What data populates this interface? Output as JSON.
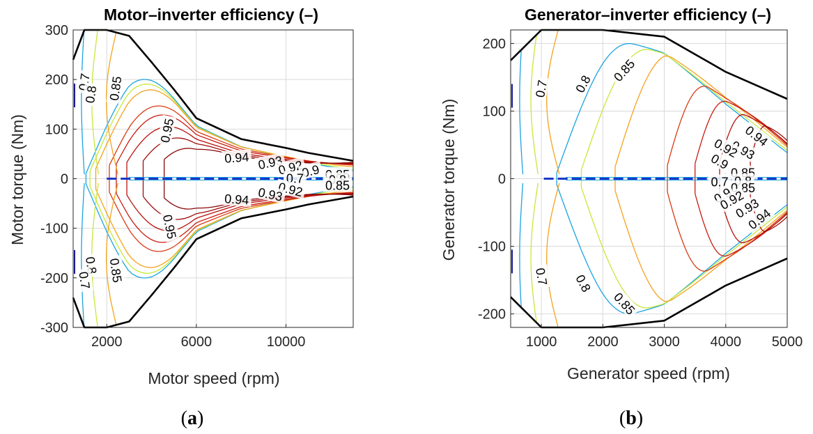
{
  "figure": {
    "caption_a_open": "(",
    "caption_a_letter": "a",
    "caption_a_close": ")",
    "caption_b_open": "(",
    "caption_b_letter": "b",
    "caption_b_close": ")"
  },
  "colors": {
    "boundary": "#000000",
    "grid": "#d9d9d9",
    "c070": "#1ba3e0",
    "c080": "#c6e83a",
    "c085": "#f4a21c",
    "c090": "#d83a12",
    "c092": "#c81a0e",
    "c093": "#b8100c",
    "c094": "#a00a0a",
    "c095": "#8a0606",
    "core": "#1838c8",
    "low": "#1a1a90"
  },
  "chart_data": [
    {
      "type": "contour",
      "title": "Motor–inverter efficiency (–)",
      "xlabel": "Motor speed (rpm)",
      "ylabel": "Motor torque (Nm)",
      "xlim": [
        500,
        13000
      ],
      "ylim": [
        -300,
        300
      ],
      "xticks": [
        2000,
        6000,
        10000
      ],
      "xtick_labels": [
        "2000",
        "6000",
        "10000"
      ],
      "yticks": [
        300,
        200,
        100,
        0,
        -100,
        -200,
        -300
      ],
      "ytick_labels": [
        "300",
        "200",
        "100",
        "0",
        "-100",
        "-200",
        "-300"
      ],
      "grid": true,
      "levels": [
        0.7,
        0.8,
        0.85,
        0.9,
        0.92,
        0.93,
        0.94,
        0.95
      ],
      "boundary_upper": [
        [
          500,
          240
        ],
        [
          1000,
          300
        ],
        [
          2000,
          300
        ],
        [
          3000,
          288
        ],
        [
          4000,
          235
        ],
        [
          5000,
          180
        ],
        [
          6000,
          122
        ],
        [
          8000,
          80
        ],
        [
          10000,
          62
        ],
        [
          11000,
          52
        ],
        [
          13000,
          36
        ]
      ],
      "contour_labels": [
        {
          "text": "0.7",
          "x": 1000,
          "y": 195,
          "angle": -82
        },
        {
          "text": "0.8",
          "x": 1300,
          "y": 170,
          "angle": -82
        },
        {
          "text": "0.85",
          "x": 2400,
          "y": 182,
          "angle": -82
        },
        {
          "text": "0.95",
          "x": 4700,
          "y": 97,
          "angle": -78
        },
        {
          "text": "0.94",
          "x": 7800,
          "y": 42,
          "angle": -4
        },
        {
          "text": "0.93",
          "x": 9300,
          "y": 32,
          "angle": -12
        },
        {
          "text": "0.92",
          "x": 10200,
          "y": 22,
          "angle": -14
        },
        {
          "text": "0.9",
          "x": 11100,
          "y": 15,
          "angle": -14
        },
        {
          "text": "0.7",
          "x": 10400,
          "y": 0,
          "angle": 0
        },
        {
          "text": "0.85",
          "x": 12300,
          "y": 8,
          "angle": 0
        },
        {
          "text": "0.8",
          "x": 12300,
          "y": -3,
          "angle": 0
        },
        {
          "text": "0.85",
          "x": 12300,
          "y": -14,
          "angle": 0
        },
        {
          "text": "0.92",
          "x": 10200,
          "y": -22,
          "angle": 14
        },
        {
          "text": "0.93",
          "x": 9300,
          "y": -32,
          "angle": 12
        },
        {
          "text": "0.94",
          "x": 7800,
          "y": -42,
          "angle": 4
        },
        {
          "text": "0.95",
          "x": 4800,
          "y": -97,
          "angle": 78
        },
        {
          "text": "0.8",
          "x": 1300,
          "y": -175,
          "angle": 82
        },
        {
          "text": "0.7",
          "x": 1000,
          "y": -205,
          "angle": 82
        },
        {
          "text": "0.85",
          "x": 2400,
          "y": -185,
          "angle": 82
        }
      ]
    },
    {
      "type": "contour",
      "title": "Generator–inverter efficiency (–)",
      "xlabel": "Generator speed (rpm)",
      "ylabel": "Generator torque (Nm)",
      "xlim": [
        500,
        5000
      ],
      "ylim": [
        -220,
        220
      ],
      "xticks": [
        1000,
        2000,
        3000,
        4000,
        5000
      ],
      "xtick_labels": [
        "1000",
        "2000",
        "3000",
        "4000",
        "5000"
      ],
      "yticks": [
        200,
        100,
        0,
        -100,
        -200
      ],
      "ytick_labels": [
        "200",
        "100",
        "0",
        "-100",
        "-200"
      ],
      "grid": true,
      "levels": [
        0.7,
        0.8,
        0.85,
        0.9,
        0.92,
        0.93,
        0.94
      ],
      "boundary_upper": [
        [
          500,
          175
        ],
        [
          1000,
          220
        ],
        [
          2000,
          220
        ],
        [
          3000,
          210
        ],
        [
          4000,
          158
        ],
        [
          5000,
          118
        ]
      ],
      "contour_labels": [
        {
          "text": "0.7",
          "x": 1000,
          "y": 133,
          "angle": -80
        },
        {
          "text": "0.8",
          "x": 1680,
          "y": 140,
          "angle": -62
        },
        {
          "text": "0.85",
          "x": 2350,
          "y": 160,
          "angle": -48
        },
        {
          "text": "0.94",
          "x": 4500,
          "y": 63,
          "angle": 38
        },
        {
          "text": "0.93",
          "x": 4280,
          "y": 42,
          "angle": 30
        },
        {
          "text": "0.92",
          "x": 4000,
          "y": 45,
          "angle": 30
        },
        {
          "text": "0.9",
          "x": 3900,
          "y": 25,
          "angle": 30
        },
        {
          "text": "0.7",
          "x": 3900,
          "y": -5,
          "angle": 0
        },
        {
          "text": "0.85",
          "x": 4280,
          "y": 8,
          "angle": 0
        },
        {
          "text": "0.8",
          "x": 4280,
          "y": -4,
          "angle": 0
        },
        {
          "text": "0.85",
          "x": 4280,
          "y": -14,
          "angle": 0
        },
        {
          "text": "0.9",
          "x": 3950,
          "y": -25,
          "angle": -30
        },
        {
          "text": "0.92",
          "x": 4100,
          "y": -32,
          "angle": -30
        },
        {
          "text": "0.93",
          "x": 4350,
          "y": -44,
          "angle": -32
        },
        {
          "text": "0.94",
          "x": 4550,
          "y": -60,
          "angle": -38
        },
        {
          "text": "0.7",
          "x": 1000,
          "y": -145,
          "angle": 80
        },
        {
          "text": "0.8",
          "x": 1680,
          "y": -155,
          "angle": 62
        },
        {
          "text": "0.85",
          "x": 2350,
          "y": -185,
          "angle": 48
        }
      ]
    }
  ]
}
